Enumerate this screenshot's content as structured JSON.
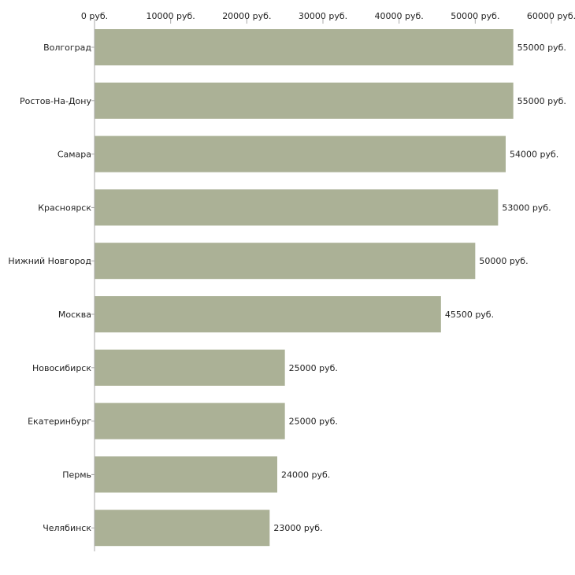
{
  "colors": {
    "bar": "#abb196",
    "axis": "#aaaaaa",
    "text": "#222222"
  },
  "chart_data": {
    "type": "bar",
    "orientation": "horizontal",
    "title": "",
    "xlabel": "",
    "ylabel": "",
    "unit": "руб.",
    "xlim": [
      0,
      60000
    ],
    "x_ticks": [
      0,
      10000,
      20000,
      30000,
      40000,
      50000,
      60000
    ],
    "x_tick_labels": [
      "0 руб.",
      "10000 руб.",
      "20000 руб.",
      "30000 руб.",
      "40000 руб.",
      "50000 руб.",
      "60000 руб."
    ],
    "x_axis_position": "top",
    "grid": false,
    "categories": [
      "Волгоград",
      "Ростов-На-Дону",
      "Самара",
      "Красноярск",
      "Нижний Новгород",
      "Москва",
      "Новосибирск",
      "Екатеринбург",
      "Пермь",
      "Челябинск"
    ],
    "values": [
      55000,
      55000,
      54000,
      53000,
      50000,
      45500,
      25000,
      25000,
      24000,
      23000
    ],
    "value_labels": [
      "55000 руб.",
      "55000 руб.",
      "54000 руб.",
      "53000 руб.",
      "50000 руб.",
      "45500 руб.",
      "25000 руб.",
      "25000 руб.",
      "24000 руб.",
      "23000 руб."
    ]
  }
}
